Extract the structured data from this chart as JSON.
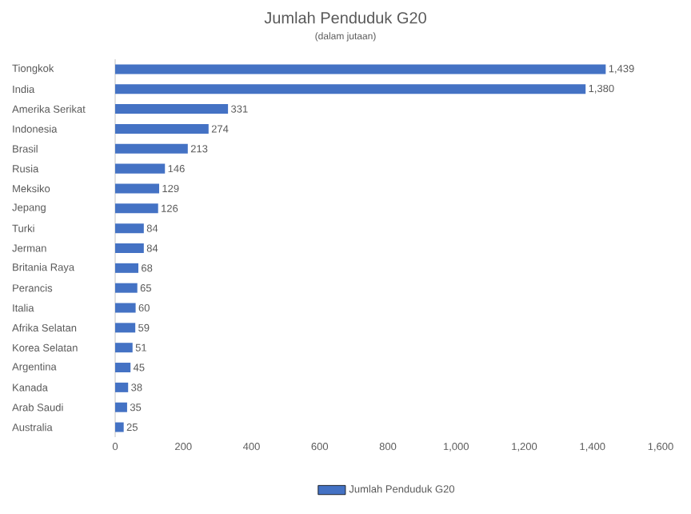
{
  "chart_data": {
    "type": "bar",
    "orientation": "horizontal",
    "title": "Jumlah Penduduk G20",
    "subtitle": "(dalam jutaan)",
    "categories": [
      "Tiongkok",
      "India",
      "Amerika Serikat",
      "Indonesia",
      "Brasil",
      "Rusia",
      "Meksiko",
      "Jepang",
      "Turki",
      "Jerman",
      "Britania Raya",
      "Perancis",
      "Italia",
      "Afrika Selatan",
      "Korea Selatan",
      "Argentina",
      "Kanada",
      "Arab Saudi",
      "Australia"
    ],
    "series": [
      {
        "name": "Jumlah Penduduk G20",
        "color": "#4472c4",
        "values": [
          1439,
          1380,
          331,
          274,
          213,
          146,
          129,
          126,
          84,
          84,
          68,
          65,
          60,
          59,
          51,
          45,
          38,
          35,
          25
        ],
        "value_labels": [
          "1,439",
          "1,380",
          "331",
          "274",
          "213",
          "146",
          "129",
          "126",
          "84",
          "84",
          "68",
          "65",
          "60",
          "59",
          "51",
          "45",
          "38",
          "35",
          "25"
        ]
      }
    ],
    "xlim": [
      0,
      1600
    ],
    "xticks": [
      0,
      200,
      400,
      600,
      800,
      {
        "value": 1000,
        "label": "1,000"
      },
      {
        "value": 1200,
        "label": "1,200"
      },
      {
        "value": 1400,
        "label": "1,400"
      },
      {
        "value": 1600,
        "label": "1,600"
      }
    ],
    "legend": "bottom"
  }
}
